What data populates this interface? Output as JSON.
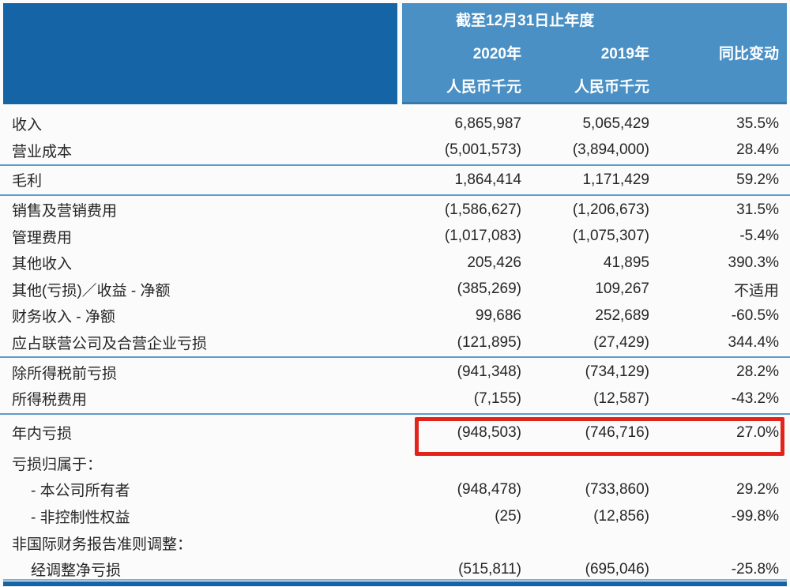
{
  "colors": {
    "header_dark_blue": "#1565a6",
    "header_light_blue": "#4a90c5",
    "separator_blue": "#5d9dcb",
    "bottom_bar_blue": "#1565a6",
    "highlight_red": "#e2231a",
    "text": "#262626",
    "header_text": "#ffffff"
  },
  "header": {
    "period_title": "截至12月31日止年度",
    "col_2020": "2020年",
    "col_2019": "2019年",
    "col_change": "同比变动",
    "unit_2020": "人民币千元",
    "unit_2019": "人民币千元"
  },
  "table": {
    "rows": [
      {
        "type": "data",
        "label": "收入",
        "v2020": "6,865,987",
        "v2019": "5,065,429",
        "change": "35.5%"
      },
      {
        "type": "data",
        "label": "营业成本",
        "v2020": "(5,001,573)",
        "v2019": "(3,894,000)",
        "change": "28.4%"
      },
      {
        "type": "separator"
      },
      {
        "type": "data",
        "label": "毛利",
        "v2020": "1,864,414",
        "v2019": "1,171,429",
        "change": "59.2%"
      },
      {
        "type": "separator"
      },
      {
        "type": "data",
        "label": "销售及营销费用",
        "v2020": "(1,586,627)",
        "v2019": "(1,206,673)",
        "change": "31.5%"
      },
      {
        "type": "data",
        "label": "管理费用",
        "v2020": "(1,017,083)",
        "v2019": "(1,075,307)",
        "change": "-5.4%"
      },
      {
        "type": "data",
        "label": "其他收入",
        "v2020": "205,426",
        "v2019": "41,895",
        "change": "390.3%"
      },
      {
        "type": "data",
        "label": "其他(亏损)／收益 - 净额",
        "v2020": "(385,269)",
        "v2019": "109,267",
        "change": "不适用"
      },
      {
        "type": "data",
        "label": "财务收入 - 净额",
        "v2020": "99,686",
        "v2019": "252,689",
        "change": "-60.5%"
      },
      {
        "type": "data",
        "label": "应占联营公司及合营企业亏损",
        "v2020": "(121,895)",
        "v2019": "(27,429)",
        "change": "344.4%"
      },
      {
        "type": "separator"
      },
      {
        "type": "data",
        "label": "除所得税前亏损",
        "v2020": "(941,348)",
        "v2019": "(734,129)",
        "change": "28.2%"
      },
      {
        "type": "data",
        "label": "所得税费用",
        "v2020": "(7,155)",
        "v2019": "(12,587)",
        "change": "-43.2%"
      },
      {
        "type": "separator"
      },
      {
        "type": "data",
        "label": "年内亏损",
        "v2020": "(948,503)",
        "v2019": "(746,716)",
        "change": "27.0%",
        "highlight": true
      },
      {
        "type": "data",
        "label": "亏损归属于：",
        "v2020": "",
        "v2019": "",
        "change": ""
      },
      {
        "type": "data",
        "label": "- 本公司所有者",
        "indent": true,
        "v2020": "(948,478)",
        "v2019": "(733,860)",
        "change": "29.2%"
      },
      {
        "type": "data",
        "label": "- 非控制性权益",
        "indent": true,
        "v2020": "(25)",
        "v2019": "(12,856)",
        "change": "-99.8%"
      },
      {
        "type": "data",
        "label": "非国际财务报告准则调整：",
        "v2020": "",
        "v2019": "",
        "change": ""
      },
      {
        "type": "data",
        "label": "经调整净亏损",
        "indent": true,
        "v2020": "(515,811)",
        "v2019": "(695,046)",
        "change": "-25.8%"
      }
    ],
    "highlight_annotation": {
      "row_label": "年内亏损",
      "style": "red-box",
      "color": "#e2231a"
    }
  }
}
